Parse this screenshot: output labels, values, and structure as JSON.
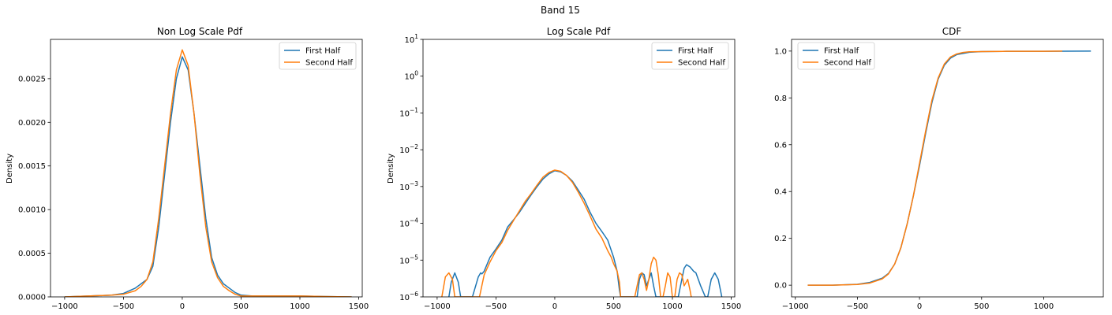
{
  "figure": {
    "suptitle": "Band 15"
  },
  "colors": {
    "series_1": "#1f77b4",
    "series_2": "#ff7f0e"
  },
  "chart_data": [
    {
      "type": "line",
      "title": "Non Log Scale Pdf",
      "xlabel": "",
      "ylabel": "Density",
      "xlim": [
        -1120,
        1530
      ],
      "ylim": [
        0,
        0.00295
      ],
      "yscale": "linear",
      "xticks": [
        -1000,
        -500,
        0,
        500,
        1000,
        1500
      ],
      "xtick_labels": [
        "−1000",
        "−500",
        "0",
        "500",
        "1000",
        "1500"
      ],
      "yticks": [
        0,
        0.0005,
        0.001,
        0.0015,
        0.002,
        0.0025
      ],
      "ytick_labels": [
        "0.0000",
        "0.0005",
        "0.0010",
        "0.0015",
        "0.0020",
        "0.0025"
      ],
      "legend": {
        "position": "upper right",
        "entries": [
          "First Half",
          "Second Half"
        ]
      },
      "series": [
        {
          "name": "First Half",
          "x": [
            -1000,
            -800,
            -600,
            -500,
            -400,
            -350,
            -300,
            -250,
            -200,
            -150,
            -100,
            -50,
            0,
            50,
            100,
            150,
            200,
            250,
            300,
            350,
            400,
            450,
            500,
            600,
            800,
            1000,
            1200,
            1440
          ],
          "y": [
            0,
            1e-05,
            2e-05,
            4e-05,
            0.0001,
            0.00015,
            0.0002,
            0.00035,
            0.0008,
            0.0014,
            0.002,
            0.0025,
            0.00275,
            0.0026,
            0.0021,
            0.0015,
            0.0009,
            0.00045,
            0.00025,
            0.00015,
            0.0001,
            5e-05,
            2e-05,
            1e-05,
            1e-05,
            1e-05,
            5e-06,
            0
          ]
        },
        {
          "name": "Second Half",
          "x": [
            -1000,
            -800,
            -600,
            -500,
            -400,
            -350,
            -300,
            -250,
            -200,
            -150,
            -100,
            -50,
            0,
            50,
            100,
            150,
            200,
            250,
            300,
            350,
            400,
            450,
            500,
            600,
            800,
            900,
            1000,
            1200,
            1440
          ],
          "y": [
            0,
            1e-05,
            2e-05,
            3e-05,
            7e-05,
            0.00012,
            0.0002,
            0.0004,
            0.0009,
            0.0015,
            0.0021,
            0.0026,
            0.00283,
            0.00265,
            0.0021,
            0.0014,
            0.0008,
            0.0004,
            0.00022,
            0.00012,
            7e-05,
            3e-05,
            1e-05,
            1e-05,
            1e-05,
            1e-05,
            1e-05,
            5e-06,
            0
          ]
        }
      ]
    },
    {
      "type": "line",
      "title": "Log Scale Pdf",
      "xlabel": "",
      "ylabel": "Density",
      "xlim": [
        -1120,
        1530
      ],
      "ylim": [
        1e-06,
        10
      ],
      "yscale": "log",
      "xticks": [
        -1000,
        -500,
        0,
        500,
        1000,
        1500
      ],
      "xtick_labels": [
        "−1000",
        "−500",
        "0",
        "500",
        "1000",
        "1500"
      ],
      "yticks": [
        1e-06,
        1e-05,
        0.0001,
        0.001,
        0.01,
        0.1,
        1,
        10
      ],
      "ytick_labels": [
        [
          "10",
          "−6"
        ],
        [
          "10",
          "−5"
        ],
        [
          "10",
          "−4"
        ],
        [
          "10",
          "−3"
        ],
        [
          "10",
          "−2"
        ],
        [
          "10",
          "−1"
        ],
        [
          "10",
          "0"
        ],
        [
          "10",
          "1"
        ]
      ],
      "legend": {
        "position": "upper right",
        "entries": [
          "First Half",
          "Second Half"
        ]
      },
      "series": [
        {
          "name": "First Half",
          "x": [
            -900,
            -880,
            -850,
            -820,
            -800,
            -700,
            -650,
            -630,
            -620,
            -600,
            -550,
            -500,
            -450,
            -400,
            -350,
            -300,
            -250,
            -200,
            -150,
            -100,
            -50,
            0,
            50,
            100,
            150,
            200,
            250,
            300,
            350,
            400,
            450,
            500,
            530,
            550,
            560,
            700,
            720,
            740,
            760,
            780,
            800,
            820,
            840,
            860,
            880,
            900,
            1000,
            1050,
            1080,
            1100,
            1120,
            1150,
            1180,
            1200,
            1240,
            1280,
            1300,
            1330,
            1360,
            1390,
            1420
          ],
          "y": [
            1e-06,
            2.5e-06,
            4.5e-06,
            2.5e-06,
            1e-06,
            1e-06,
            3.5e-06,
            4.5e-06,
            4.2e-06,
            5e-06,
            1.2e-05,
            2e-05,
            3.5e-05,
            8e-05,
            0.000125,
            0.0002,
            0.00035,
            0.0006,
            0.001,
            0.0016,
            0.0022,
            0.0027,
            0.0025,
            0.002,
            0.0014,
            0.0008,
            0.00045,
            0.0002,
            0.0001,
            6e-05,
            3.5e-05,
            1.2e-05,
            5e-06,
            1.5e-06,
            1e-06,
            1e-06,
            3e-06,
            4.5e-06,
            4e-06,
            2e-06,
            3e-06,
            4.5e-06,
            2e-06,
            1e-06,
            1e-06,
            1e-06,
            1e-06,
            1e-06,
            3e-06,
            6e-06,
            7.5e-06,
            6.5e-06,
            5e-06,
            4.5e-06,
            2e-06,
            1e-06,
            1e-06,
            3e-06,
            4.5e-06,
            3e-06,
            1e-06
          ]
        },
        {
          "name": "Second Half",
          "x": [
            -960,
            -930,
            -900,
            -870,
            -850,
            -640,
            -620,
            -600,
            -550,
            -500,
            -450,
            -400,
            -350,
            -300,
            -250,
            -200,
            -150,
            -100,
            -50,
            0,
            50,
            100,
            150,
            200,
            250,
            300,
            350,
            400,
            450,
            480,
            500,
            530,
            550,
            560,
            680,
            700,
            720,
            740,
            760,
            780,
            800,
            820,
            840,
            860,
            880,
            900,
            920,
            940,
            960,
            980,
            1000,
            1020,
            1040,
            1060,
            1080,
            1100,
            1130,
            1150,
            1160
          ],
          "y": [
            1e-06,
            3.5e-06,
            4.5e-06,
            3e-06,
            1e-06,
            1e-06,
            2e-06,
            4e-06,
            9e-06,
            1.8e-05,
            3e-05,
            6.5e-05,
            0.00012,
            0.00022,
            0.0004,
            0.00065,
            0.0011,
            0.0018,
            0.0024,
            0.0028,
            0.0026,
            0.002,
            0.0013,
            0.0007,
            0.00035,
            0.00016,
            7e-05,
            4e-05,
            1.8e-05,
            1.2e-05,
            8e-06,
            5e-06,
            2.5e-06,
            1e-06,
            1e-06,
            2e-06,
            4e-06,
            4.5e-06,
            3e-06,
            1.5e-06,
            3e-06,
            8e-06,
            1.2e-05,
            1e-05,
            4e-06,
            1e-06,
            1e-06,
            2e-06,
            4.5e-06,
            3.5e-06,
            1e-06,
            1e-06,
            3e-06,
            4.5e-06,
            4e-06,
            2e-06,
            3e-06,
            1.5e-06,
            1e-06
          ]
        }
      ]
    },
    {
      "type": "line",
      "title": "CDF",
      "xlabel": "",
      "ylabel": "",
      "xlim": [
        -1030,
        1480
      ],
      "ylim": [
        -0.05,
        1.05
      ],
      "yscale": "linear",
      "xticks": [
        -1000,
        -500,
        0,
        500,
        1000
      ],
      "xtick_labels": [
        "−1000",
        "−500",
        "0",
        "500",
        "1000"
      ],
      "yticks": [
        0,
        0.2,
        0.4,
        0.6,
        0.8,
        1.0
      ],
      "ytick_labels": [
        "0.0",
        "0.2",
        "0.4",
        "0.6",
        "0.8",
        "1.0"
      ],
      "legend": {
        "position": "upper left",
        "entries": [
          "First Half",
          "Second Half"
        ]
      },
      "series": [
        {
          "name": "First Half",
          "x": [
            -900,
            -700,
            -500,
            -400,
            -300,
            -250,
            -200,
            -150,
            -100,
            -50,
            0,
            50,
            100,
            150,
            200,
            250,
            300,
            350,
            400,
            500,
            700,
            1000,
            1380
          ],
          "y": [
            0,
            0,
            0.004,
            0.012,
            0.03,
            0.05,
            0.09,
            0.16,
            0.26,
            0.38,
            0.51,
            0.65,
            0.78,
            0.88,
            0.94,
            0.97,
            0.985,
            0.99,
            0.995,
            0.998,
            0.999,
            0.999,
            1.0
          ]
        },
        {
          "name": "Second Half",
          "x": [
            -900,
            -700,
            -500,
            -400,
            -300,
            -250,
            -200,
            -150,
            -100,
            -50,
            0,
            50,
            100,
            150,
            200,
            250,
            300,
            350,
            400,
            500,
            700,
            1000,
            1150
          ],
          "y": [
            0,
            0,
            0.003,
            0.009,
            0.027,
            0.048,
            0.09,
            0.16,
            0.26,
            0.38,
            0.52,
            0.66,
            0.79,
            0.885,
            0.945,
            0.975,
            0.988,
            0.994,
            0.997,
            0.998,
            0.999,
            0.999,
            1.0
          ]
        }
      ]
    }
  ]
}
